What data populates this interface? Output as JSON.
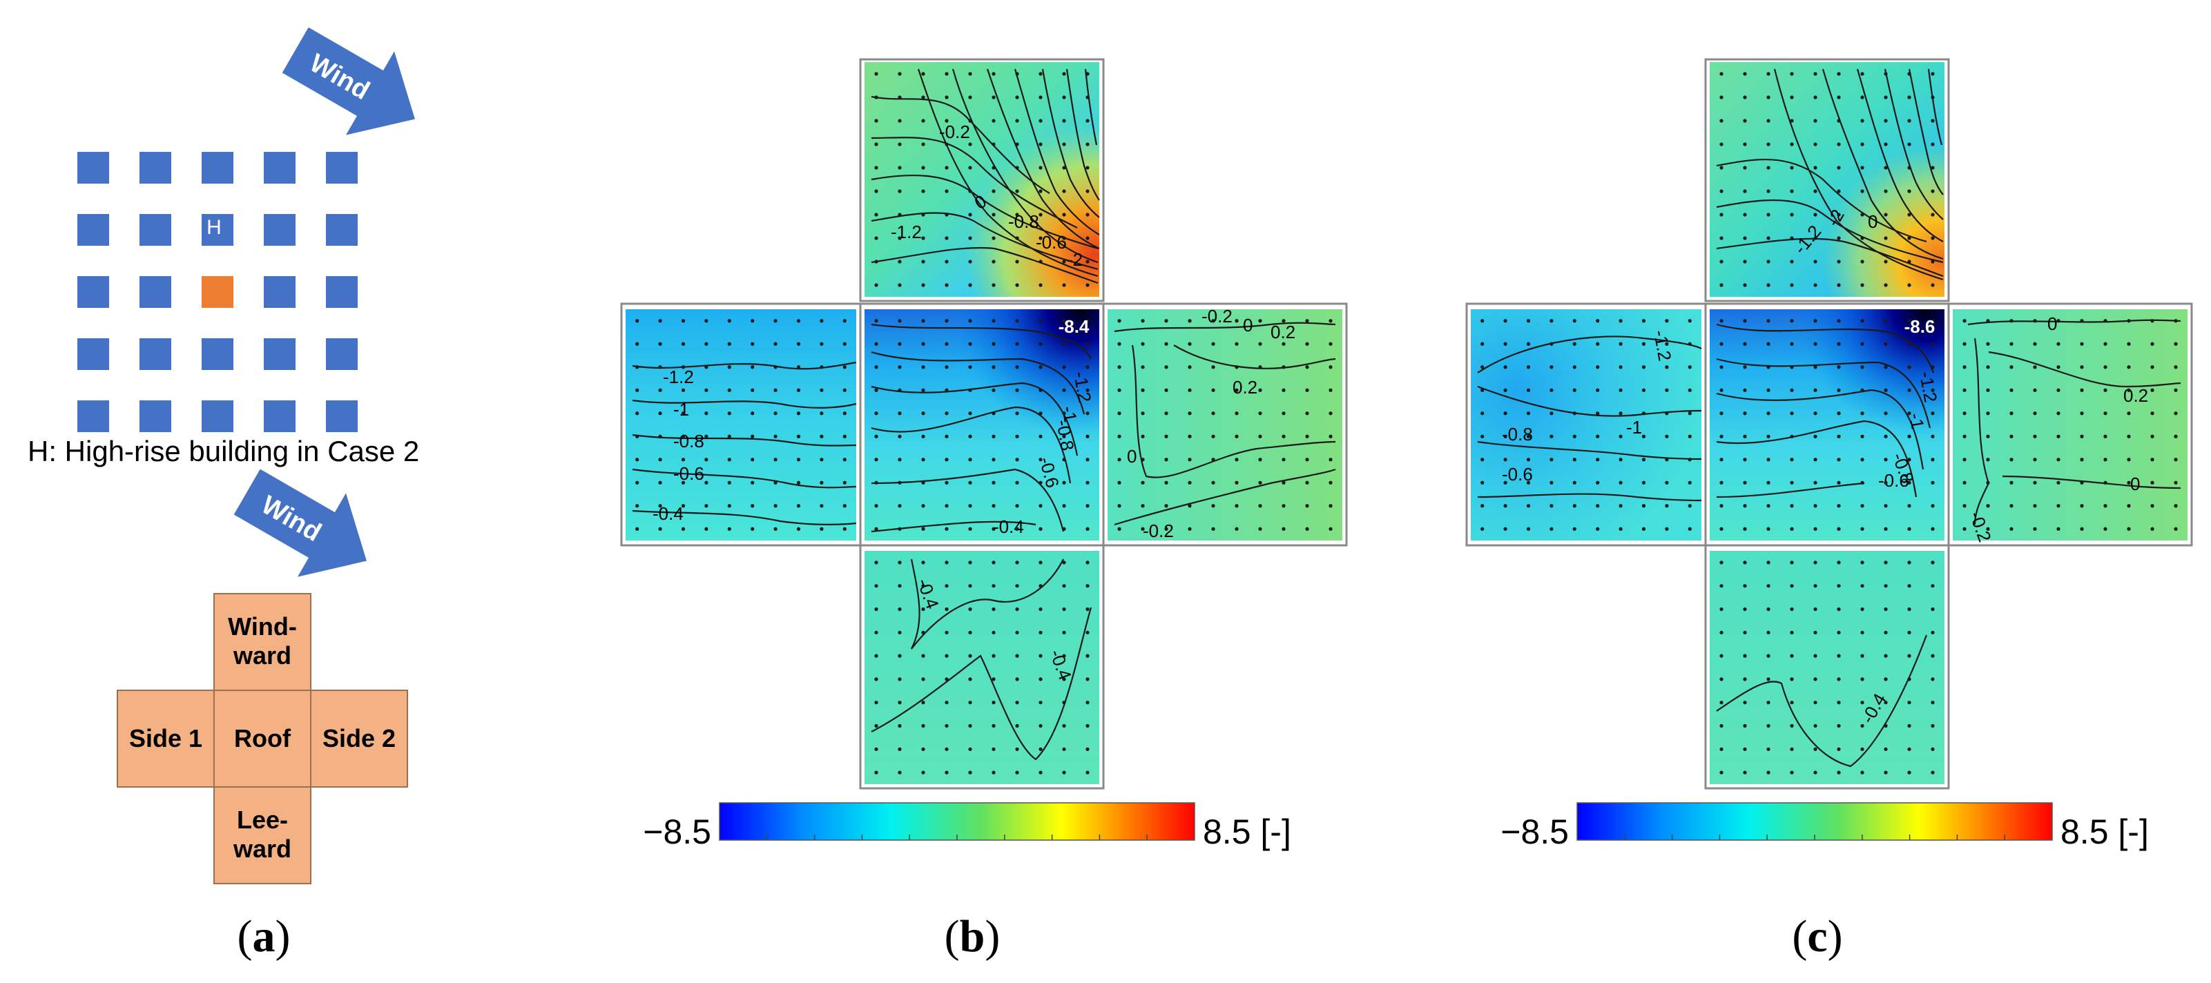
{
  "panel_a": {
    "label_open": "(",
    "label_letter": "a",
    "label_close": ")",
    "wind_label": "Wind",
    "caption": "H: High-rise building in Case 2",
    "grid_rows": 5,
    "grid_cols": 5,
    "target_cell": [
      2,
      2
    ],
    "highrise_cell": [
      1,
      2
    ],
    "highrise_mark": "H",
    "faces": {
      "windward": [
        "Wind-",
        "ward"
      ],
      "side1": "Side 1",
      "roof": "Roof",
      "side2": "Side 2",
      "leeward": [
        "Lee-",
        "ward"
      ]
    },
    "colors": {
      "block": "#4472C4",
      "target": "#ED7D31",
      "face": "#F4B183",
      "arrow": "#4472C4"
    }
  },
  "panel_b": {
    "label_open": "(",
    "label_letter": "b",
    "label_close": ")",
    "peak_label": "-8.4",
    "colorbar_min": "−8.5",
    "colorbar_max": "8.5 [-]",
    "contour_labels": {
      "windward": [
        "0",
        "-1.2",
        "-0.8",
        "-0.6",
        "-2",
        "-0.2"
      ],
      "side1": [
        "-1.2",
        "-1",
        "-0.8",
        "-0.6",
        "-0.4"
      ],
      "roof": [
        "-1.2",
        "-1",
        "-0.8",
        "-0.6",
        "-0.4"
      ],
      "side2": [
        "-0.2",
        "0",
        "0.2",
        "0.2",
        "0",
        "-0.2"
      ],
      "leeward": [
        "-0.4",
        "-0.4"
      ]
    }
  },
  "panel_c": {
    "label_open": "(",
    "label_letter": "c",
    "label_close": ")",
    "peak_label": "-8.6",
    "colorbar_min": "−8.5",
    "colorbar_max": "8.5 [-]",
    "contour_labels": {
      "windward": [
        "-1.2",
        "-2",
        "0"
      ],
      "side1": [
        "-1.2",
        "-1",
        "-0.8",
        "-0.6"
      ],
      "roof": [
        "-1.2",
        "-1",
        "-0.8",
        "-0.6"
      ],
      "side2": [
        "0",
        "0.2",
        "0",
        "-0.2"
      ],
      "leeward": [
        "-0.4"
      ]
    }
  },
  "chart_data": {
    "type": "heatmap",
    "colorscale": "jet",
    "vmin": -8.5,
    "vmax": 8.5,
    "panels": [
      {
        "panel": "b",
        "peak_min": -8.4
      },
      {
        "panel": "c",
        "peak_min": -8.6
      }
    ]
  }
}
